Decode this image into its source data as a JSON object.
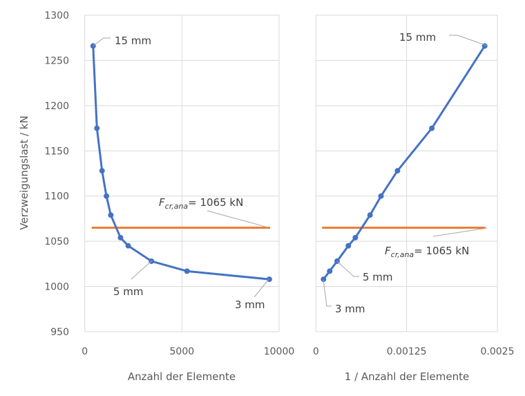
{
  "chart_data": [
    {
      "type": "line",
      "xlabel": "Anzahl der Elemente",
      "ylabel": "Verzweigungslast / kN",
      "xlim": [
        0,
        10000
      ],
      "ylim": [
        950,
        1300
      ],
      "xticks": [
        "0",
        "5000",
        "10000"
      ],
      "yticks": [
        "950",
        "1000",
        "1050",
        "1100",
        "1150",
        "1200",
        "1250",
        "1300"
      ],
      "grid": true,
      "series": [
        {
          "x": [
            430,
            626,
            890,
            1115,
            1340,
            1840,
            2236,
            3430,
            5260,
            9500
          ],
          "y": [
            1266,
            1175,
            1128,
            1100,
            1079,
            1054,
            1045,
            1028,
            1017,
            1008
          ],
          "color": "#4472C4"
        }
      ],
      "reference_line": {
        "y": 1065,
        "label_main": "F",
        "label_sub": "cr,ana",
        "label_rest": "= 1065 kN",
        "color": "#ED7D31"
      },
      "annotations": [
        "15 mm",
        "5 mm",
        "3 mm"
      ]
    },
    {
      "type": "line",
      "xlabel": "1 / Anzahl der Elemente",
      "ylabel": "",
      "xlim": [
        0,
        0.0025
      ],
      "ylim": [
        950,
        1300
      ],
      "xticks": [
        "0",
        "0.00125",
        "0.0025"
      ],
      "grid": true,
      "series": [
        {
          "x": [
            0.002326,
            0.001597,
            0.001124,
            0.000897,
            0.000746,
            0.000543,
            0.000447,
            0.000292,
            0.00019,
            0.000105
          ],
          "y": [
            1266,
            1175,
            1128,
            1100,
            1079,
            1054,
            1045,
            1028,
            1017,
            1008
          ],
          "color": "#4472C4"
        }
      ],
      "reference_line": {
        "y": 1065,
        "label_main": "F",
        "label_sub": "cr,ana",
        "label_rest": "= 1065 kN",
        "color": "#ED7D31"
      },
      "annotations": [
        "15 mm",
        "5 mm",
        "3 mm"
      ]
    }
  ]
}
